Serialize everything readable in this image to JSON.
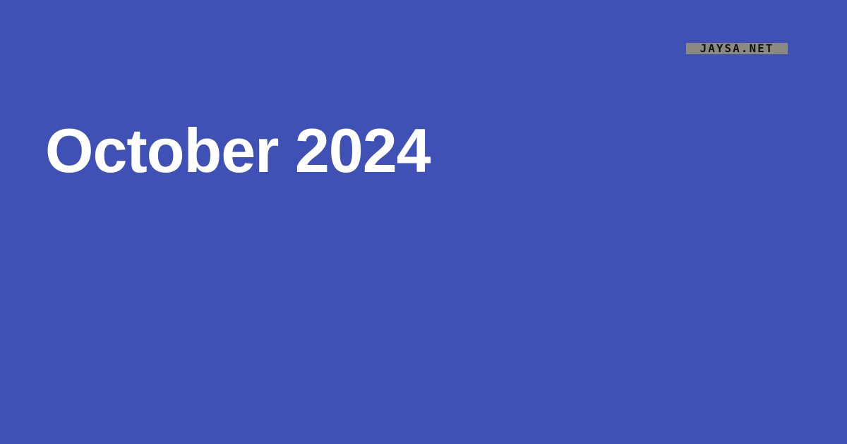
{
  "card": {
    "background_color": "#3f51b5",
    "text_color": "#ffffff"
  },
  "logo": {
    "text": "JAYSA.NET",
    "background_color": "#8a8a82",
    "text_color": "#111111"
  },
  "title": {
    "text": "October 2024"
  }
}
